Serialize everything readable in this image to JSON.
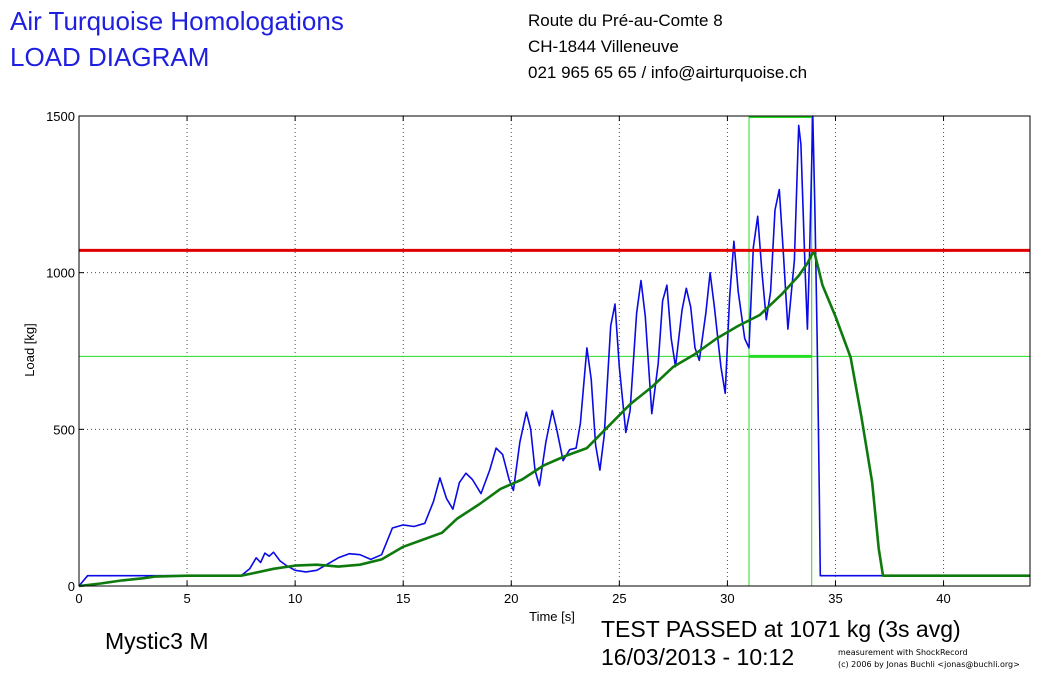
{
  "header": {
    "title_line1": "Air Turquoise Homologations",
    "title_line2": "LOAD DIAGRAM",
    "address_line1": "Route du Pré-au-Comte 8",
    "address_line2": "CH-1844 Villeneuve",
    "address_line3": "021 965 65 65 / info@airturquoise.ch"
  },
  "footer": {
    "glider": "Mystic3 M",
    "result": "TEST PASSED at 1071 kg (3s avg)",
    "datetime": "16/03/2013 - 10:12",
    "credit_line1": "measurement with ShockRecord",
    "credit_line2": "(c) 2006 by Jonas Buchli <jonas@buchli.org>"
  },
  "chart_data": {
    "type": "line",
    "xlabel": "Time [s]",
    "ylabel": "Load [kg]",
    "xlim": [
      0,
      44
    ],
    "ylim": [
      0,
      1500
    ],
    "x_ticks": [
      0,
      5,
      10,
      15,
      20,
      25,
      30,
      35,
      40
    ],
    "y_ticks": [
      0,
      500,
      1000,
      1500
    ],
    "grid": true,
    "colors": {
      "raw": "#0a0ae6",
      "avg": "#0e7a0e",
      "threshold": "#e00000",
      "window": "#22dd22",
      "axis": "#000000",
      "grid": "#000000"
    },
    "threshold": {
      "y": 1071
    },
    "window": {
      "x_start": 31.0,
      "x_end": 33.9,
      "y": 733,
      "ymax": 1500
    },
    "series": [
      {
        "key": "raw",
        "points": [
          [
            0,
            0
          ],
          [
            0.4,
            33
          ],
          [
            3,
            33
          ],
          [
            7.5,
            33
          ],
          [
            7.9,
            55
          ],
          [
            8.2,
            90
          ],
          [
            8.4,
            75
          ],
          [
            8.6,
            105
          ],
          [
            8.8,
            95
          ],
          [
            9.0,
            108
          ],
          [
            9.3,
            80
          ],
          [
            9.6,
            65
          ],
          [
            10.0,
            50
          ],
          [
            10.5,
            45
          ],
          [
            11.0,
            50
          ],
          [
            11.5,
            70
          ],
          [
            12.0,
            90
          ],
          [
            12.5,
            103
          ],
          [
            13.0,
            100
          ],
          [
            13.5,
            85
          ],
          [
            14.0,
            100
          ],
          [
            14.5,
            185
          ],
          [
            15.0,
            195
          ],
          [
            15.5,
            190
          ],
          [
            16.0,
            200
          ],
          [
            16.4,
            270
          ],
          [
            16.7,
            345
          ],
          [
            17.0,
            280
          ],
          [
            17.3,
            245
          ],
          [
            17.6,
            330
          ],
          [
            17.9,
            360
          ],
          [
            18.2,
            340
          ],
          [
            18.6,
            295
          ],
          [
            19.0,
            370
          ],
          [
            19.3,
            440
          ],
          [
            19.6,
            420
          ],
          [
            19.9,
            340
          ],
          [
            20.1,
            305
          ],
          [
            20.4,
            460
          ],
          [
            20.7,
            555
          ],
          [
            20.9,
            500
          ],
          [
            21.1,
            370
          ],
          [
            21.3,
            320
          ],
          [
            21.6,
            460
          ],
          [
            21.9,
            560
          ],
          [
            22.1,
            500
          ],
          [
            22.4,
            400
          ],
          [
            22.7,
            435
          ],
          [
            23.0,
            440
          ],
          [
            23.2,
            520
          ],
          [
            23.5,
            760
          ],
          [
            23.7,
            660
          ],
          [
            23.9,
            450
          ],
          [
            24.1,
            370
          ],
          [
            24.3,
            480
          ],
          [
            24.6,
            830
          ],
          [
            24.8,
            900
          ],
          [
            25.0,
            700
          ],
          [
            25.3,
            490
          ],
          [
            25.5,
            560
          ],
          [
            25.8,
            870
          ],
          [
            26.0,
            975
          ],
          [
            26.2,
            860
          ],
          [
            26.5,
            550
          ],
          [
            26.8,
            710
          ],
          [
            27.0,
            910
          ],
          [
            27.2,
            960
          ],
          [
            27.4,
            790
          ],
          [
            27.6,
            700
          ],
          [
            27.9,
            880
          ],
          [
            28.1,
            950
          ],
          [
            28.3,
            890
          ],
          [
            28.5,
            760
          ],
          [
            28.7,
            720
          ],
          [
            29.0,
            870
          ],
          [
            29.2,
            1000
          ],
          [
            29.4,
            890
          ],
          [
            29.7,
            700
          ],
          [
            29.9,
            615
          ],
          [
            30.1,
            920
          ],
          [
            30.3,
            1100
          ],
          [
            30.5,
            940
          ],
          [
            30.8,
            790
          ],
          [
            31.0,
            760
          ],
          [
            31.2,
            1080
          ],
          [
            31.4,
            1180
          ],
          [
            31.6,
            1000
          ],
          [
            31.8,
            850
          ],
          [
            32.0,
            940
          ],
          [
            32.2,
            1200
          ],
          [
            32.4,
            1265
          ],
          [
            32.6,
            1050
          ],
          [
            32.8,
            820
          ],
          [
            33.1,
            1040
          ],
          [
            33.3,
            1470
          ],
          [
            33.4,
            1410
          ],
          [
            33.6,
            1000
          ],
          [
            33.7,
            820
          ],
          [
            33.8,
            1050
          ],
          [
            33.95,
            1500
          ],
          [
            34.05,
            1200
          ],
          [
            34.15,
            800
          ],
          [
            34.25,
            300
          ],
          [
            34.3,
            33
          ],
          [
            44,
            33
          ]
        ]
      },
      {
        "key": "avg",
        "points": [
          [
            0,
            0
          ],
          [
            1,
            8
          ],
          [
            2,
            18
          ],
          [
            3,
            25
          ],
          [
            3.5,
            30
          ],
          [
            5,
            33
          ],
          [
            6,
            33
          ],
          [
            7,
            33
          ],
          [
            7.5,
            33
          ],
          [
            8,
            40
          ],
          [
            9,
            55
          ],
          [
            10,
            65
          ],
          [
            11,
            68
          ],
          [
            12,
            62
          ],
          [
            13,
            68
          ],
          [
            14,
            85
          ],
          [
            15,
            125
          ],
          [
            16,
            150
          ],
          [
            16.8,
            170
          ],
          [
            17.5,
            215
          ],
          [
            18.5,
            260
          ],
          [
            19.5,
            310
          ],
          [
            20.5,
            340
          ],
          [
            21.5,
            385
          ],
          [
            22.5,
            415
          ],
          [
            23.5,
            440
          ],
          [
            24.5,
            510
          ],
          [
            25.5,
            580
          ],
          [
            26.5,
            635
          ],
          [
            27.5,
            700
          ],
          [
            28.5,
            740
          ],
          [
            29.5,
            790
          ],
          [
            30.5,
            830
          ],
          [
            31.5,
            865
          ],
          [
            32.5,
            930
          ],
          [
            33.3,
            990
          ],
          [
            33.7,
            1030
          ],
          [
            34.0,
            1071
          ],
          [
            34.4,
            960
          ],
          [
            35.0,
            860
          ],
          [
            35.7,
            730
          ],
          [
            36.2,
            540
          ],
          [
            36.7,
            330
          ],
          [
            37.0,
            120
          ],
          [
            37.2,
            33
          ],
          [
            44,
            33
          ]
        ]
      }
    ]
  }
}
